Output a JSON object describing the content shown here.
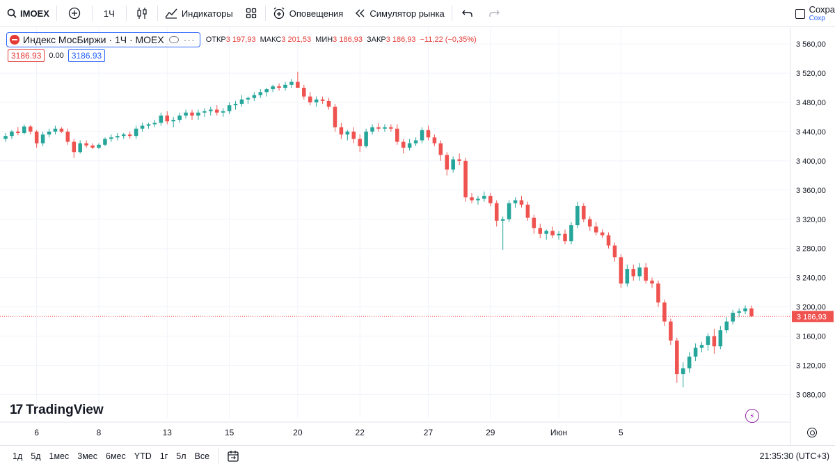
{
  "toolbar": {
    "symbol": "IMOEX",
    "interval": "1Ч",
    "indicators_label": "Индикаторы",
    "alerts_label": "Оповещения",
    "simulator_label": "Симулятор рынка",
    "save_label": "Сохра",
    "save_sub": "Сохр"
  },
  "legend": {
    "title": "Индекс МосБиржи · 1Ч · MOEX",
    "open_label": "ОТКР",
    "open": "3 197,93",
    "high_label": "МАКС",
    "high": "3 201,53",
    "low_label": "МИН",
    "low": "3 186,93",
    "close_label": "ЗАКР",
    "close": "3 186,93",
    "change": "−11,22 (−0,35%)",
    "bid": "3186.93",
    "spread": "0.00",
    "ask": "3186.93"
  },
  "brand": {
    "name": "TradingView"
  },
  "bottom": {
    "ranges": [
      "1д",
      "5д",
      "1мес",
      "3мес",
      "6мес",
      "YTD",
      "1г",
      "5л",
      "Все"
    ],
    "time": "21:35:30 (UTC+3)"
  },
  "colors": {
    "up": "#26a69a",
    "down": "#ef5350",
    "grid": "#f0f3fa",
    "last_price": "#ef5350"
  },
  "chart_data": {
    "type": "candlestick",
    "y_axis_ticks": [
      "3 560,00",
      "3 520,00",
      "3 480,00",
      "3 440,00",
      "3 400,00",
      "3 360,00",
      "3 320,00",
      "3 280,00",
      "3 240,00",
      "3 200,00",
      "3 160,00",
      "3 120,00",
      "3 080,00"
    ],
    "y_tick_values": [
      3560,
      3520,
      3480,
      3440,
      3400,
      3360,
      3320,
      3280,
      3240,
      3200,
      3160,
      3120,
      3080
    ],
    "x_axis_ticks": [
      "6",
      "8",
      "13",
      "15",
      "20",
      "22",
      "27",
      "29",
      "Июн",
      "5"
    ],
    "x_tick_index": [
      5,
      15,
      26,
      36,
      47,
      57,
      68,
      78,
      89,
      99
    ],
    "ylim": [
      3048,
      3582
    ],
    "last_price": 3186.93,
    "last_price_label": "3 186,93",
    "candles": [
      [
        3430,
        3438,
        3426,
        3434
      ],
      [
        3434,
        3442,
        3430,
        3440
      ],
      [
        3440,
        3446,
        3435,
        3438
      ],
      [
        3438,
        3450,
        3436,
        3447
      ],
      [
        3447,
        3449,
        3436,
        3440
      ],
      [
        3440,
        3442,
        3418,
        3424
      ],
      [
        3424,
        3440,
        3420,
        3436
      ],
      [
        3436,
        3444,
        3432,
        3440
      ],
      [
        3440,
        3448,
        3436,
        3444
      ],
      [
        3444,
        3446,
        3438,
        3440
      ],
      [
        3440,
        3444,
        3422,
        3426
      ],
      [
        3426,
        3430,
        3404,
        3412
      ],
      [
        3412,
        3428,
        3410,
        3424
      ],
      [
        3424,
        3428,
        3418,
        3421
      ],
      [
        3421,
        3424,
        3416,
        3418
      ],
      [
        3418,
        3424,
        3416,
        3422
      ],
      [
        3422,
        3432,
        3420,
        3430
      ],
      [
        3430,
        3436,
        3426,
        3432
      ],
      [
        3432,
        3438,
        3428,
        3434
      ],
      [
        3434,
        3438,
        3430,
        3436
      ],
      [
        3436,
        3440,
        3430,
        3434
      ],
      [
        3434,
        3448,
        3430,
        3444
      ],
      [
        3444,
        3452,
        3440,
        3448
      ],
      [
        3448,
        3452,
        3444,
        3450
      ],
      [
        3450,
        3456,
        3446,
        3452
      ],
      [
        3452,
        3466,
        3448,
        3462
      ],
      [
        3462,
        3468,
        3450,
        3454
      ],
      [
        3454,
        3460,
        3446,
        3456
      ],
      [
        3456,
        3466,
        3452,
        3462
      ],
      [
        3462,
        3470,
        3458,
        3466
      ],
      [
        3466,
        3470,
        3456,
        3462
      ],
      [
        3462,
        3470,
        3456,
        3466
      ],
      [
        3466,
        3472,
        3460,
        3468
      ],
      [
        3468,
        3474,
        3462,
        3470
      ],
      [
        3470,
        3476,
        3462,
        3466
      ],
      [
        3466,
        3472,
        3460,
        3468
      ],
      [
        3468,
        3480,
        3464,
        3476
      ],
      [
        3476,
        3482,
        3470,
        3478
      ],
      [
        3478,
        3490,
        3474,
        3484
      ],
      [
        3484,
        3488,
        3478,
        3486
      ],
      [
        3486,
        3494,
        3482,
        3490
      ],
      [
        3490,
        3498,
        3486,
        3494
      ],
      [
        3494,
        3500,
        3488,
        3498
      ],
      [
        3498,
        3504,
        3494,
        3502
      ],
      [
        3502,
        3506,
        3496,
        3500
      ],
      [
        3500,
        3508,
        3496,
        3504
      ],
      [
        3504,
        3512,
        3500,
        3508
      ],
      [
        3508,
        3522,
        3504,
        3500
      ],
      [
        3500,
        3504,
        3484,
        3488
      ],
      [
        3488,
        3494,
        3476,
        3480
      ],
      [
        3480,
        3488,
        3474,
        3484
      ],
      [
        3484,
        3488,
        3478,
        3482
      ],
      [
        3482,
        3486,
        3470,
        3474
      ],
      [
        3474,
        3478,
        3440,
        3446
      ],
      [
        3446,
        3452,
        3430,
        3436
      ],
      [
        3436,
        3442,
        3428,
        3440
      ],
      [
        3440,
        3446,
        3424,
        3430
      ],
      [
        3430,
        3436,
        3412,
        3420
      ],
      [
        3420,
        3444,
        3418,
        3440
      ],
      [
        3440,
        3450,
        3436,
        3446
      ],
      [
        3446,
        3452,
        3440,
        3444
      ],
      [
        3444,
        3450,
        3440,
        3446
      ],
      [
        3446,
        3450,
        3440,
        3444
      ],
      [
        3444,
        3450,
        3422,
        3426
      ],
      [
        3426,
        3430,
        3410,
        3418
      ],
      [
        3418,
        3430,
        3414,
        3424
      ],
      [
        3424,
        3432,
        3420,
        3428
      ],
      [
        3428,
        3446,
        3424,
        3442
      ],
      [
        3442,
        3448,
        3428,
        3432
      ],
      [
        3432,
        3436,
        3420,
        3424
      ],
      [
        3424,
        3428,
        3400,
        3408
      ],
      [
        3408,
        3412,
        3380,
        3388
      ],
      [
        3388,
        3406,
        3384,
        3402
      ],
      [
        3402,
        3410,
        3394,
        3400
      ],
      [
        3400,
        3404,
        3344,
        3350
      ],
      [
        3350,
        3356,
        3342,
        3346
      ],
      [
        3346,
        3352,
        3340,
        3348
      ],
      [
        3348,
        3358,
        3344,
        3352
      ],
      [
        3352,
        3356,
        3338,
        3342
      ],
      [
        3342,
        3346,
        3310,
        3318
      ],
      [
        3318,
        3324,
        3278,
        3320
      ],
      [
        3320,
        3346,
        3316,
        3342
      ],
      [
        3342,
        3350,
        3336,
        3346
      ],
      [
        3346,
        3352,
        3336,
        3340
      ],
      [
        3340,
        3344,
        3318,
        3322
      ],
      [
        3322,
        3326,
        3300,
        3308
      ],
      [
        3308,
        3314,
        3294,
        3300
      ],
      [
        3300,
        3306,
        3292,
        3304
      ],
      [
        3304,
        3310,
        3294,
        3298
      ],
      [
        3298,
        3304,
        3292,
        3300
      ],
      [
        3300,
        3306,
        3286,
        3290
      ],
      [
        3290,
        3316,
        3286,
        3312
      ],
      [
        3312,
        3344,
        3308,
        3338
      ],
      [
        3338,
        3342,
        3316,
        3320
      ],
      [
        3320,
        3324,
        3304,
        3310
      ],
      [
        3310,
        3316,
        3298,
        3302
      ],
      [
        3302,
        3306,
        3294,
        3298
      ],
      [
        3298,
        3302,
        3280,
        3284
      ],
      [
        3284,
        3288,
        3262,
        3268
      ],
      [
        3268,
        3272,
        3226,
        3232
      ],
      [
        3232,
        3258,
        3228,
        3252
      ],
      [
        3252,
        3258,
        3236,
        3242
      ],
      [
        3242,
        3260,
        3236,
        3254
      ],
      [
        3254,
        3260,
        3232,
        3236
      ],
      [
        3236,
        3240,
        3226,
        3232
      ],
      [
        3232,
        3236,
        3200,
        3206
      ],
      [
        3206,
        3210,
        3174,
        3180
      ],
      [
        3180,
        3184,
        3148,
        3154
      ],
      [
        3154,
        3158,
        3096,
        3108
      ],
      [
        3108,
        3124,
        3090,
        3116
      ],
      [
        3116,
        3138,
        3110,
        3132
      ],
      [
        3132,
        3150,
        3126,
        3144
      ],
      [
        3144,
        3152,
        3138,
        3148
      ],
      [
        3148,
        3164,
        3140,
        3160
      ],
      [
        3160,
        3170,
        3136,
        3146
      ],
      [
        3146,
        3174,
        3142,
        3168
      ],
      [
        3168,
        3186,
        3164,
        3180
      ],
      [
        3180,
        3196,
        3176,
        3192
      ],
      [
        3192,
        3198,
        3186,
        3194
      ],
      [
        3194,
        3202,
        3190,
        3198
      ],
      [
        3198,
        3202,
        3186,
        3187
      ]
    ]
  }
}
